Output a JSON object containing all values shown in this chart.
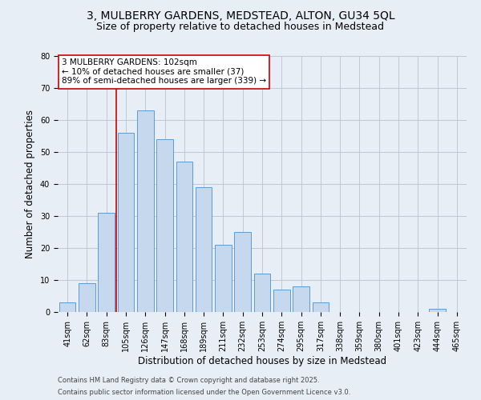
{
  "title_line1": "3, MULBERRY GARDENS, MEDSTEAD, ALTON, GU34 5QL",
  "title_line2": "Size of property relative to detached houses in Medstead",
  "xlabel": "Distribution of detached houses by size in Medstead",
  "ylabel": "Number of detached properties",
  "bin_labels": [
    "41sqm",
    "62sqm",
    "83sqm",
    "105sqm",
    "126sqm",
    "147sqm",
    "168sqm",
    "189sqm",
    "211sqm",
    "232sqm",
    "253sqm",
    "274sqm",
    "295sqm",
    "317sqm",
    "338sqm",
    "359sqm",
    "380sqm",
    "401sqm",
    "423sqm",
    "444sqm",
    "465sqm"
  ],
  "bar_values": [
    3,
    9,
    31,
    56,
    63,
    54,
    47,
    39,
    21,
    25,
    12,
    7,
    8,
    3,
    0,
    0,
    0,
    0,
    0,
    1,
    0
  ],
  "bar_color": "#c5d8ed",
  "bar_edge_color": "#5b9bd5",
  "grid_color": "#c0c8d8",
  "background_color": "#e8eef5",
  "vline_color": "#cc0000",
  "annotation_text": "3 MULBERRY GARDENS: 102sqm\n← 10% of detached houses are smaller (37)\n89% of semi-detached houses are larger (339) →",
  "annotation_box_color": "#ffffff",
  "annotation_box_edge": "#cc0000",
  "footer_line1": "Contains HM Land Registry data © Crown copyright and database right 2025.",
  "footer_line2": "Contains public sector information licensed under the Open Government Licence v3.0.",
  "ylim": [
    0,
    80
  ],
  "yticks": [
    0,
    10,
    20,
    30,
    40,
    50,
    60,
    70,
    80
  ],
  "title_fontsize": 10,
  "subtitle_fontsize": 9,
  "xlabel_fontsize": 8.5,
  "ylabel_fontsize": 8.5,
  "tick_fontsize": 7,
  "annotation_fontsize": 7.5,
  "footer_fontsize": 6
}
